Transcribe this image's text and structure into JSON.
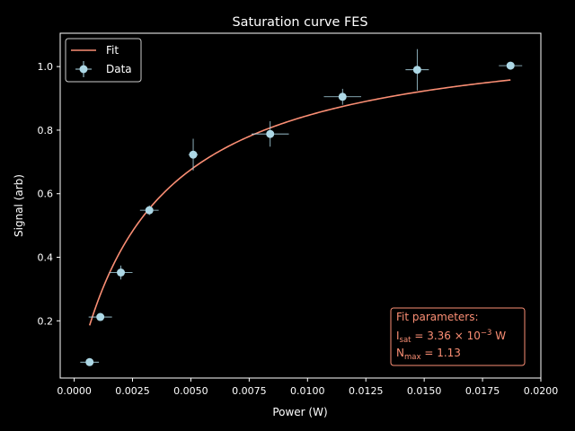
{
  "chart_data": {
    "type": "scatter",
    "title": "Saturation curve FES",
    "xlabel": "Power (W)",
    "ylabel": "Signal (arb)",
    "xlim": [
      -0.0006,
      0.02
    ],
    "ylim": [
      0.02,
      1.105
    ],
    "xticks": [
      0.0,
      0.0025,
      0.005,
      0.0075,
      0.01,
      0.0125,
      0.015,
      0.0175,
      0.02
    ],
    "xtick_labels": [
      "0.0000",
      "0.0025",
      "0.0050",
      "0.0075",
      "0.0100",
      "0.0125",
      "0.0150",
      "0.0175",
      "0.0200"
    ],
    "yticks": [
      0.2,
      0.4,
      0.6,
      0.8,
      1.0
    ],
    "ytick_labels": [
      "0.2",
      "0.4",
      "0.6",
      "0.8",
      "1.0"
    ],
    "grid": false,
    "legend": {
      "position": "top-left",
      "entries": [
        "Fit",
        "Data"
      ]
    },
    "series": [
      {
        "name": "Fit",
        "kind": "line",
        "model": "saturation",
        "params": {
          "I_sat": 0.00336,
          "N_max": 1.13
        },
        "x_range": [
          0.00066,
          0.0187
        ],
        "color": "#fa8e74"
      },
      {
        "name": "Data",
        "kind": "errorbar",
        "color": "#add8e6",
        "points": [
          {
            "x": 0.00066,
            "y": 0.07,
            "xerr": 0.0004,
            "yerr": 0.008
          },
          {
            "x": 0.00112,
            "y": 0.212,
            "xerr": 0.0005,
            "yerr": 0.012
          },
          {
            "x": 0.002,
            "y": 0.352,
            "xerr": 0.0005,
            "yerr": 0.022
          },
          {
            "x": 0.00322,
            "y": 0.548,
            "xerr": 0.0004,
            "yerr": 0.015
          },
          {
            "x": 0.0051,
            "y": 0.723,
            "xerr": 0.0002,
            "yerr": 0.05
          },
          {
            "x": 0.0084,
            "y": 0.788,
            "xerr": 0.0008,
            "yerr": 0.04
          },
          {
            "x": 0.0115,
            "y": 0.905,
            "xerr": 0.0008,
            "yerr": 0.025
          },
          {
            "x": 0.0147,
            "y": 0.99,
            "xerr": 0.0005,
            "yerr": 0.065
          },
          {
            "x": 0.0187,
            "y": 1.003,
            "xerr": 0.0005,
            "yerr": 0.005
          }
        ]
      }
    ],
    "annotation": {
      "heading": "Fit parameters:",
      "isat_label": "I",
      "isat_sub": "sat",
      "isat_value": " = 3.36 × 10",
      "isat_exp": "−3",
      "isat_unit": " W",
      "nmax_label": "N",
      "nmax_sub": "max",
      "nmax_value": " = 1.13",
      "position": "bottom-right",
      "color": "#fa8e74"
    }
  }
}
